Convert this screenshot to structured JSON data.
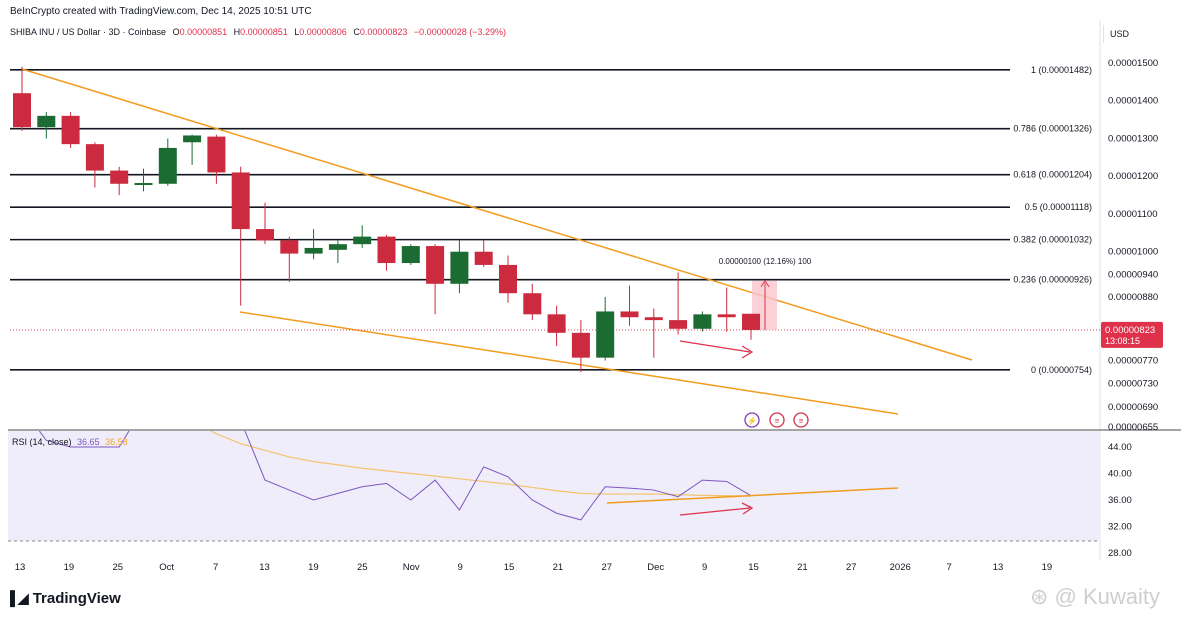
{
  "header": {
    "created_by": "BeInCrypto created with TradingView.com, Dec 14, 2025 10:51 UTC",
    "symbol": "SHIBA INU / US Dollar · 3D · Coinbase",
    "ohlc": {
      "o_label": "O",
      "o": "0.00000851",
      "h_label": "H",
      "h": "0.00000851",
      "l_label": "L",
      "l": "0.00000806",
      "c_label": "C",
      "c": "0.00000823",
      "change": "−0.00000028 (−3.29%)"
    },
    "currency": "USD"
  },
  "chart_data": {
    "type": "candlestick",
    "y_range": [
      6.55e-06,
      1.535e-05
    ],
    "x_labels": [
      "13",
      "19",
      "25",
      "Oct",
      "7",
      "13",
      "19",
      "25",
      "Nov",
      "9",
      "15",
      "21",
      "27",
      "Dec",
      "9",
      "15",
      "21",
      "27",
      "2026",
      "7",
      "13",
      "19"
    ],
    "y_ticks": [
      "0.00001500",
      "0.00001400",
      "0.00001300",
      "0.00001200",
      "0.00001100",
      "0.00001000",
      "0.00000940",
      "0.00000880",
      "0.00000770",
      "0.00000730",
      "0.00000690",
      "0.00000655"
    ],
    "candles": [
      {
        "o": 1.42e-05,
        "h": 1.49e-05,
        "l": 1.32e-05,
        "c": 1.33e-05
      },
      {
        "o": 1.33e-05,
        "h": 1.37e-05,
        "l": 1.3e-05,
        "c": 1.36e-05
      },
      {
        "o": 1.36e-05,
        "h": 1.37e-05,
        "l": 1.275e-05,
        "c": 1.285e-05
      },
      {
        "o": 1.285e-05,
        "h": 1.29e-05,
        "l": 1.17e-05,
        "c": 1.215e-05
      },
      {
        "o": 1.215e-05,
        "h": 1.225e-05,
        "l": 1.15e-05,
        "c": 1.18e-05
      },
      {
        "o": 1.178e-05,
        "h": 1.22e-05,
        "l": 1.16e-05,
        "c": 1.182e-05
      },
      {
        "o": 1.18e-05,
        "h": 1.3e-05,
        "l": 1.175e-05,
        "c": 1.275e-05
      },
      {
        "o": 1.29e-05,
        "h": 1.31e-05,
        "l": 1.23e-05,
        "c": 1.308e-05
      },
      {
        "o": 1.305e-05,
        "h": 1.31e-05,
        "l": 1.18e-05,
        "c": 1.21e-05
      },
      {
        "o": 1.21e-05,
        "h": 1.225e-05,
        "l": 8.65e-06,
        "c": 1.06e-05
      },
      {
        "o": 1.06e-05,
        "h": 1.13e-05,
        "l": 1.02e-05,
        "c": 1.03e-05
      },
      {
        "o": 1.03e-05,
        "h": 1.04e-05,
        "l": 9.2e-06,
        "c": 9.95e-06
      },
      {
        "o": 9.95e-06,
        "h": 1.06e-05,
        "l": 9.8e-06,
        "c": 1.01e-05
      },
      {
        "o": 1.005e-05,
        "h": 1.03e-05,
        "l": 9.7e-06,
        "c": 1.02e-05
      },
      {
        "o": 1.02e-05,
        "h": 1.07e-05,
        "l": 1.01e-05,
        "c": 1.04e-05
      },
      {
        "o": 1.04e-05,
        "h": 1.045e-05,
        "l": 9.5e-06,
        "c": 9.7e-06
      },
      {
        "o": 9.7e-06,
        "h": 1.02e-05,
        "l": 9.65e-06,
        "c": 1.015e-05
      },
      {
        "o": 1.015e-05,
        "h": 1.02e-05,
        "l": 8.5e-06,
        "c": 9.15e-06
      },
      {
        "o": 9.15e-06,
        "h": 1.03e-05,
        "l": 8.9e-06,
        "c": 1e-05
      },
      {
        "o": 1e-05,
        "h": 1.03e-05,
        "l": 9.6e-06,
        "c": 9.65e-06
      },
      {
        "o": 9.65e-06,
        "h": 9.9e-06,
        "l": 8.7e-06,
        "c": 8.9e-06
      },
      {
        "o": 8.9e-06,
        "h": 9.15e-06,
        "l": 8.4e-06,
        "c": 8.5e-06
      },
      {
        "o": 8.5e-06,
        "h": 8.65e-06,
        "l": 7.95e-06,
        "c": 8.18e-06
      },
      {
        "o": 8.18e-06,
        "h": 8.4e-06,
        "l": 7.5e-06,
        "c": 7.75e-06
      },
      {
        "o": 7.75e-06,
        "h": 8.8e-06,
        "l": 7.7e-06,
        "c": 8.55e-06
      },
      {
        "o": 8.55e-06,
        "h": 9.1e-06,
        "l": 8.3e-06,
        "c": 8.45e-06
      },
      {
        "o": 8.45e-06,
        "h": 8.6e-06,
        "l": 7.75e-06,
        "c": 8.4e-06
      },
      {
        "o": 8.4e-06,
        "h": 9.45e-06,
        "l": 8.15e-06,
        "c": 8.25e-06
      },
      {
        "o": 8.25e-06,
        "h": 8.55e-06,
        "l": 8.2e-06,
        "c": 8.5e-06
      },
      {
        "o": 8.5e-06,
        "h": 9.05e-06,
        "l": 8.2e-06,
        "c": 8.45e-06
      },
      {
        "o": 8.51e-06,
        "h": 8.51e-06,
        "l": 8.06e-06,
        "c": 8.23e-06
      }
    ],
    "fib_levels": [
      {
        "ratio_label": "1 (0.00001482)",
        "value": 1.482e-05
      },
      {
        "ratio_label": "0.786 (0.00001326)",
        "value": 1.326e-05
      },
      {
        "ratio_label": "0.618 (0.00001204)",
        "value": 1.204e-05
      },
      {
        "ratio_label": "0.5 (0.00001118)",
        "value": 1.118e-05
      },
      {
        "ratio_label": "0.382 (0.00001032)",
        "value": 1.032e-05
      },
      {
        "ratio_label": "0.236 (0.00000926)",
        "value": 9.26e-06
      },
      {
        "ratio_label": "0 (0.00000754)",
        "value": 7.54e-06
      }
    ],
    "current_price": "0.00000823",
    "countdown": "13:08:15",
    "measure_label": "0.00000100 (12.16%) 100",
    "rsi": {
      "label": "RSI (14, close)",
      "value": "36.65",
      "ma_value": "36.58",
      "y_range": [
        28,
        48
      ],
      "y_ticks": [
        "44.00",
        "40.00",
        "36.00",
        "32.00",
        "28.00"
      ],
      "rsi_values": [
        50,
        45,
        44,
        44,
        44,
        50,
        60,
        58,
        55,
        48,
        39,
        37.5,
        36,
        37,
        38,
        38.5,
        36,
        39,
        34.5,
        41,
        39.5,
        36,
        34,
        33,
        38,
        37.8,
        37.5,
        36.5,
        39,
        38.8,
        36.65
      ],
      "ma_values": [
        58,
        57,
        56,
        55,
        54,
        52,
        50,
        48,
        46,
        44.5,
        43.5,
        42.5,
        41.8,
        41.3,
        40.8,
        40.4,
        40,
        39.6,
        39.2,
        38.8,
        38.4,
        37.9,
        37.4,
        37,
        36.9,
        36.9,
        36.9,
        36.8,
        36.7,
        36.65,
        36.58
      ]
    }
  },
  "footer": {
    "brand": "TradingView",
    "watermark": "⊛ @ Kuwaity"
  },
  "colors": {
    "bull": "#1b6b33",
    "bear": "#cc2a3e",
    "trend": "#f39b1c",
    "rsi_line": "#7e57c2",
    "rsi_ma": "#f5c26b",
    "price_tag": "#e0314b"
  }
}
